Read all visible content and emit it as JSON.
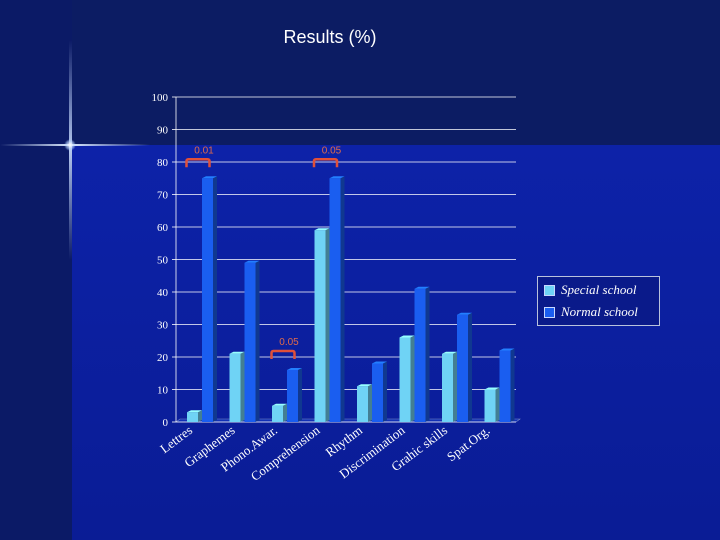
{
  "chart_data": {
    "type": "bar",
    "title": "Results (%)",
    "categories": [
      "Lettres",
      "Graphemes",
      "Phono.Awar.",
      "Comprehension",
      "Rhythm",
      "Discrimination",
      "Grahic skills",
      "Spat.Org."
    ],
    "series": [
      {
        "name": "Special school",
        "values": [
          3,
          21,
          5,
          59,
          11,
          26,
          21,
          10
        ],
        "color": "#6fd3f5"
      },
      {
        "name": "Normal school",
        "values": [
          75,
          49,
          16,
          75,
          18,
          41,
          33,
          22
        ],
        "color": "#1a5ef0"
      }
    ],
    "ylim": [
      0,
      100
    ],
    "yticks": [
      "0",
      "10",
      "20",
      "30",
      "40",
      "50",
      "60",
      "70",
      "80",
      "90",
      "100"
    ],
    "grid": true,
    "legend_position": "right",
    "annotations": [
      {
        "text": "0.01",
        "category": "Lettres"
      },
      {
        "text": "0.05",
        "category": "Phono.Awar."
      },
      {
        "text": "0.05",
        "category": "Comprehension"
      }
    ]
  }
}
